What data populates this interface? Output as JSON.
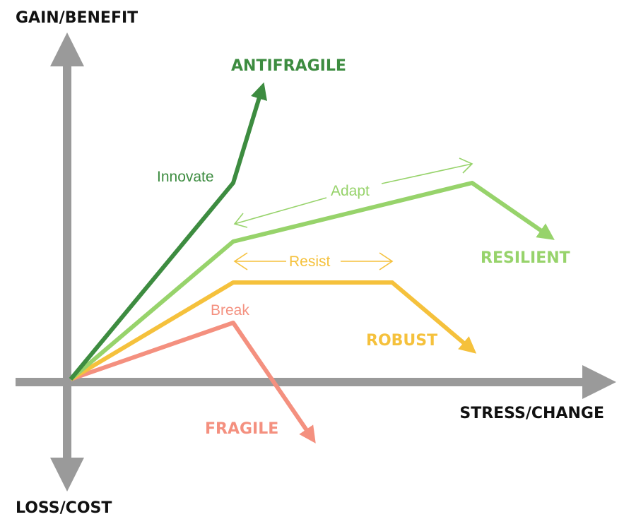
{
  "axes": {
    "y_positive": "GAIN/BENEFIT",
    "y_negative": "LOSS/COST",
    "x_positive": "STRESS/CHANGE"
  },
  "curves": {
    "antifragile": {
      "title": "ANTIFRAGILE",
      "phase": "Innovate",
      "color": "#3d8c40"
    },
    "resilient": {
      "title": "RESILIENT",
      "phase": "Adapt",
      "color": "#97d36b"
    },
    "robust": {
      "title": "ROBUST",
      "phase": "Resist",
      "color": "#f5c13c"
    },
    "fragile": {
      "title": "FRAGILE",
      "phase": "Break",
      "color": "#f4907f"
    }
  },
  "colors": {
    "axis": "#9a9a9a",
    "axis_text": "#111111"
  }
}
